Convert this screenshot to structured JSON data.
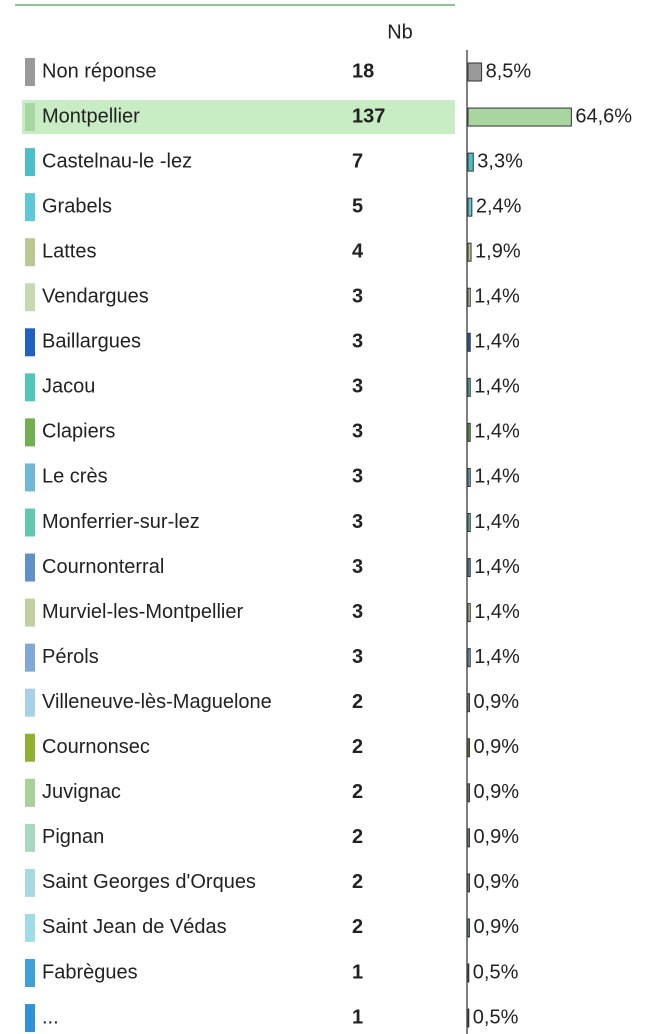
{
  "chart_data": {
    "type": "bar",
    "column_header": "Nb",
    "categories": [
      "Non réponse",
      "Montpellier",
      "Castelnau-le -lez",
      "Grabels",
      "Lattes",
      "Vendargues",
      "Baillargues",
      "Jacou",
      "Clapiers",
      "Le crès",
      "Monferrier-sur-lez",
      "Cournonterral",
      "Murviel-les-Montpellier",
      "Pérols",
      "Villeneuve-lès-Maguelone",
      "Cournonsec",
      "Juvignac",
      "Pignan",
      "Saint Georges d'Orques",
      "Saint Jean de Védas",
      "Fabrègues",
      "..."
    ],
    "counts": [
      18,
      137,
      7,
      5,
      4,
      3,
      3,
      3,
      3,
      3,
      3,
      3,
      3,
      3,
      2,
      2,
      2,
      2,
      2,
      2,
      1,
      1
    ],
    "values": [
      8.5,
      64.6,
      3.3,
      2.4,
      1.9,
      1.4,
      1.4,
      1.4,
      1.4,
      1.4,
      1.4,
      1.4,
      1.4,
      1.4,
      0.9,
      0.9,
      0.9,
      0.9,
      0.9,
      0.9,
      0.5,
      0.5
    ],
    "value_labels": [
      "8,5%",
      "64,6%",
      "3,3%",
      "2,4%",
      "1,9%",
      "1,4%",
      "1,4%",
      "1,4%",
      "1,4%",
      "1,4%",
      "1,4%",
      "1,4%",
      "1,4%",
      "1,4%",
      "0,9%",
      "0,9%",
      "0,9%",
      "0,9%",
      "0,9%",
      "0,9%",
      "0,5%",
      "0,5%"
    ],
    "colors": [
      "#9a9a9a",
      "#a8d5a0",
      "#4bbfc8",
      "#5cc8d8",
      "#b8c890",
      "#c8d8b0",
      "#2060c0",
      "#50c8b8",
      "#70b050",
      "#70b8d8",
      "#60c8b0",
      "#6090c8",
      "#c0d0a0",
      "#80a8d8",
      "#a8d0e8",
      "#90b030",
      "#a8d098",
      "#a8d8c0",
      "#a8d8e0",
      "#a0dce8",
      "#40a0d8",
      "#3090d8"
    ]
  }
}
